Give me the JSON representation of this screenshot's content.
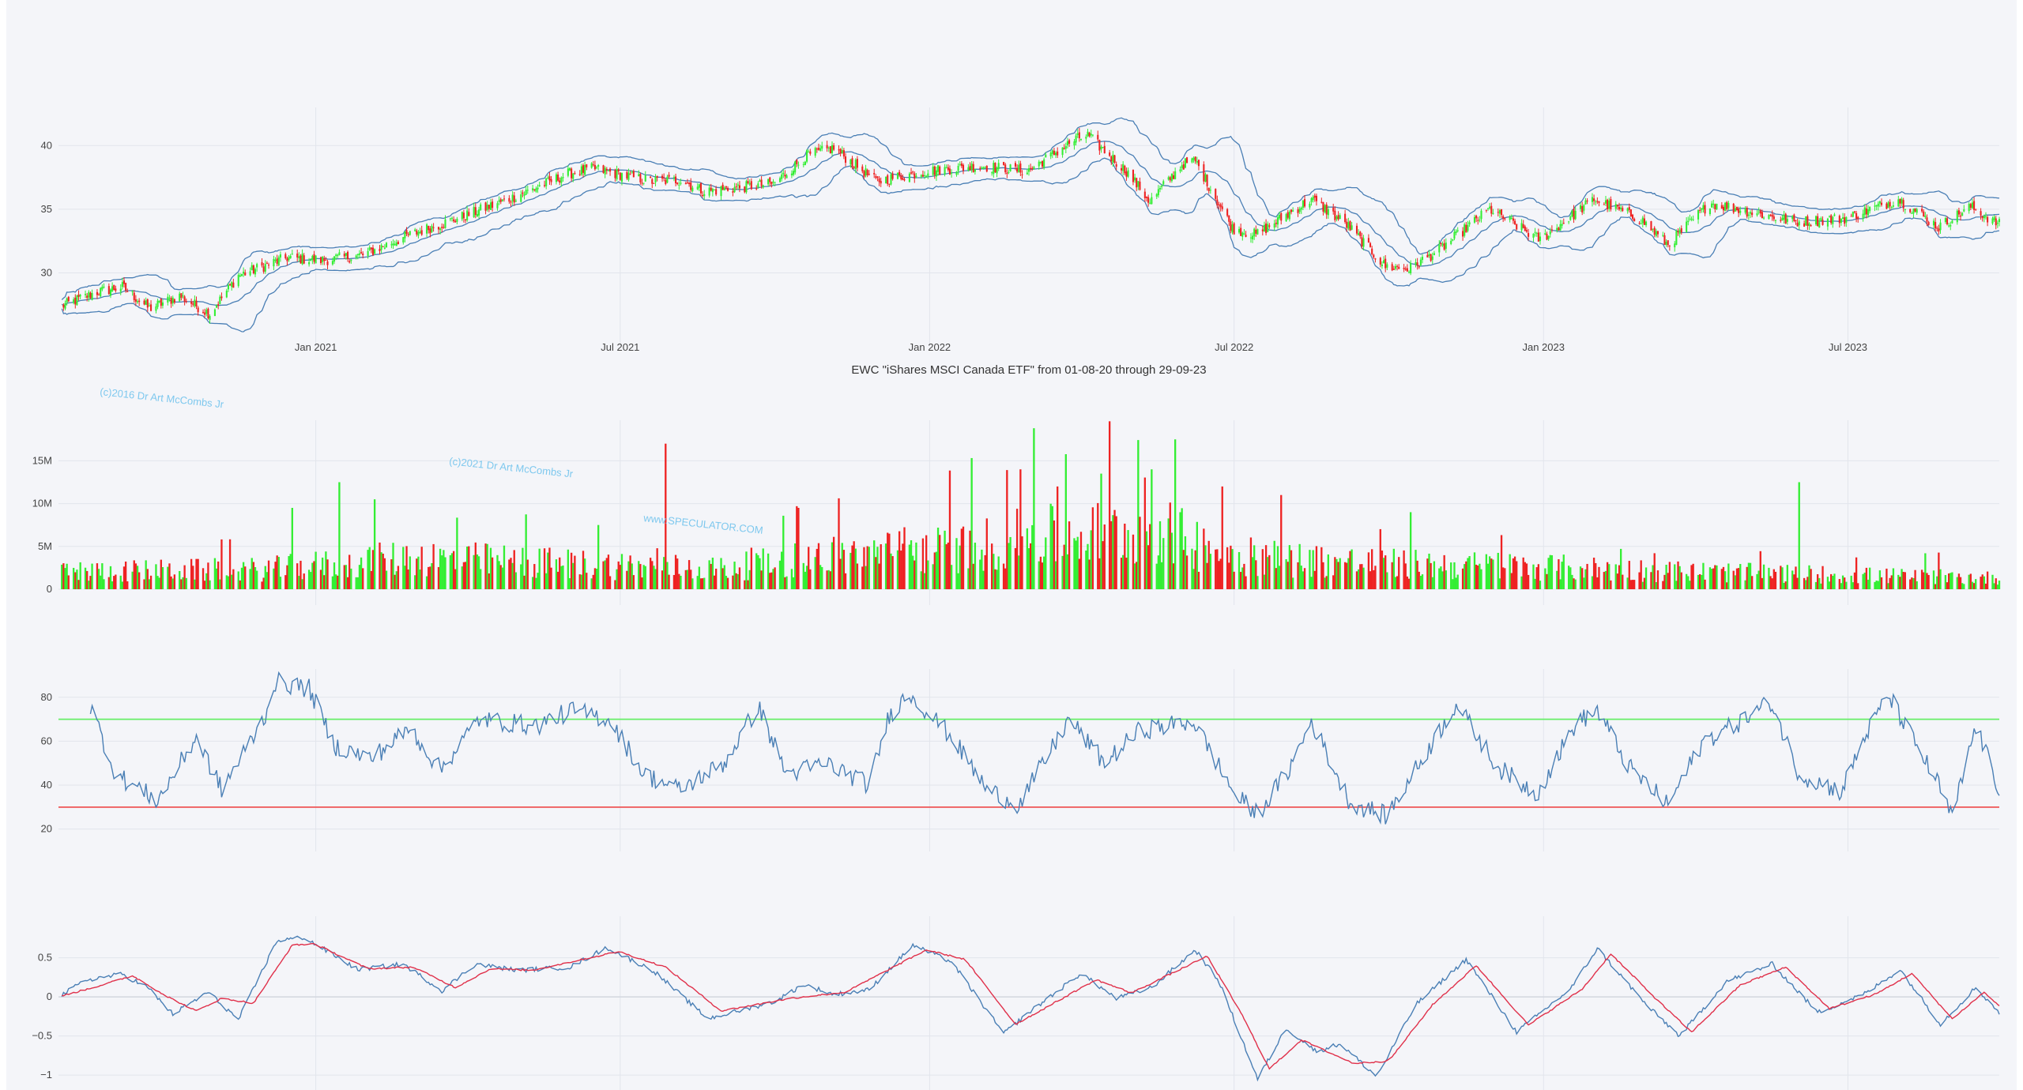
{
  "colors": {
    "background": "#f4f5f9",
    "grid": "#e2e5ec",
    "up": "#33ee33",
    "down": "#ee2222",
    "band": "#4a7fb5",
    "line": "#4a7fb5",
    "signal": "#e0304a",
    "overbought": "#66ee66",
    "oversold": "#ee5555",
    "watermark": "#7ec8ee"
  },
  "chart_data": [
    {
      "id": "price",
      "type": "candlestick",
      "title": "EWC \"iShares MSCI Canada ETF\" from 01-08-20 through 29-09-23",
      "x_range": [
        "2020-08-01",
        "2023-09-29"
      ],
      "x_ticks": [
        "Jan 2021",
        "Jul 2021",
        "Jan 2022",
        "Jul 2022",
        "Jan 2023",
        "Jul 2023"
      ],
      "y_range": [
        25.5,
        42.5
      ],
      "y_ticks": [
        "30",
        "35",
        "40"
      ],
      "overlays": [
        "bollinger_upper",
        "bollinger_middle",
        "bollinger_lower"
      ],
      "close_anchors": [
        [
          "2020-08-03",
          27.4
        ],
        [
          "2020-08-24",
          28.5
        ],
        [
          "2020-09-08",
          28.9
        ],
        [
          "2020-09-24",
          27.2
        ],
        [
          "2020-10-12",
          28.2
        ],
        [
          "2020-10-30",
          26.8
        ],
        [
          "2020-11-16",
          29.8
        ],
        [
          "2020-12-15",
          31.2
        ],
        [
          "2021-01-05",
          31.0
        ],
        [
          "2021-01-29",
          31.4
        ],
        [
          "2021-02-26",
          33.0
        ],
        [
          "2021-03-31",
          34.5
        ],
        [
          "2021-04-30",
          36.0
        ],
        [
          "2021-05-31",
          37.8
        ],
        [
          "2021-06-15",
          38.2
        ],
        [
          "2021-07-19",
          37.2
        ],
        [
          "2021-08-06",
          37.3
        ],
        [
          "2021-08-20",
          36.4
        ],
        [
          "2021-09-30",
          37.0
        ],
        [
          "2021-10-20",
          39.2
        ],
        [
          "2021-11-05",
          39.8
        ],
        [
          "2021-11-30",
          37.2
        ],
        [
          "2021-12-31",
          38.0
        ],
        [
          "2022-01-31",
          38.4
        ],
        [
          "2022-02-28",
          38.0
        ],
        [
          "2022-03-29",
          40.5
        ],
        [
          "2022-04-05",
          40.8
        ],
        [
          "2022-04-28",
          38.0
        ],
        [
          "2022-05-12",
          35.6
        ],
        [
          "2022-05-31",
          38.5
        ],
        [
          "2022-06-08",
          38.8
        ],
        [
          "2022-06-30",
          33.5
        ],
        [
          "2022-07-14",
          33.0
        ],
        [
          "2022-08-16",
          35.8
        ],
        [
          "2022-09-06",
          33.8
        ],
        [
          "2022-09-29",
          30.5
        ],
        [
          "2022-10-13",
          30.3
        ],
        [
          "2022-10-31",
          31.8
        ],
        [
          "2022-11-30",
          35.0
        ],
        [
          "2022-12-30",
          32.6
        ],
        [
          "2023-01-31",
          35.8
        ],
        [
          "2023-02-28",
          34.2
        ],
        [
          "2023-03-16",
          32.2
        ],
        [
          "2023-04-10",
          35.5
        ],
        [
          "2023-05-31",
          34.0
        ],
        [
          "2023-06-30",
          34.3
        ],
        [
          "2023-07-31",
          35.8
        ],
        [
          "2023-08-24",
          33.6
        ],
        [
          "2023-09-12",
          35.2
        ],
        [
          "2023-09-29",
          33.8
        ]
      ]
    },
    {
      "id": "volume",
      "type": "bar",
      "x_range": [
        "2020-08-01",
        "2023-09-29"
      ],
      "y_range": [
        0,
        19000000
      ],
      "y_ticks": [
        "0",
        "5M",
        "10M",
        "15M"
      ],
      "level_anchors": [
        [
          "2020-08-01",
          2.2
        ],
        [
          "2020-12-01",
          2.5
        ],
        [
          "2021-03-01",
          4.0
        ],
        [
          "2021-06-01",
          3.2
        ],
        [
          "2021-09-01",
          2.6
        ],
        [
          "2021-11-01",
          4.2
        ],
        [
          "2022-01-15",
          5.0
        ],
        [
          "2022-03-01",
          6.5
        ],
        [
          "2022-05-15",
          7.5
        ],
        [
          "2022-07-01",
          4.2
        ],
        [
          "2022-10-01",
          3.2
        ],
        [
          "2023-01-01",
          2.8
        ],
        [
          "2023-04-01",
          2.2
        ],
        [
          "2023-09-29",
          1.4
        ]
      ],
      "spikes": [
        [
          "2021-07-28",
          17.0
        ],
        [
          "2021-06-18",
          7.5
        ],
        [
          "2021-01-15",
          12.5
        ],
        [
          "2021-02-05",
          10.5
        ],
        [
          "2020-12-18",
          9.5
        ],
        [
          "2022-03-04",
          18.8
        ],
        [
          "2022-02-24",
          14.0
        ],
        [
          "2022-03-18",
          12.0
        ],
        [
          "2022-05-27",
          17.5
        ],
        [
          "2022-05-13",
          14.0
        ],
        [
          "2022-06-24",
          12.0
        ],
        [
          "2022-07-29",
          11.0
        ],
        [
          "2022-10-14",
          9.0
        ],
        [
          "2023-06-02",
          12.5
        ],
        [
          "2022-04-13",
          13.5
        ],
        [
          "2021-10-15",
          9.5
        ]
      ]
    },
    {
      "id": "rsi",
      "type": "line",
      "x_range": [
        "2020-08-01",
        "2023-09-29"
      ],
      "y_range": [
        17,
        90
      ],
      "y_ticks": [
        "20",
        "40",
        "60",
        "80"
      ],
      "reference_lines": [
        70,
        30
      ],
      "value_anchors": [
        [
          "2020-08-20",
          76
        ],
        [
          "2020-09-04",
          45
        ],
        [
          "2020-09-29",
          33
        ],
        [
          "2020-10-22",
          62
        ],
        [
          "2020-11-06",
          38
        ],
        [
          "2020-12-01",
          70
        ],
        [
          "2020-12-08",
          87
        ],
        [
          "2020-12-28",
          84
        ],
        [
          "2021-01-12",
          58
        ],
        [
          "2021-02-03",
          52
        ],
        [
          "2021-02-26",
          66
        ],
        [
          "2021-03-16",
          47
        ],
        [
          "2021-04-08",
          70
        ],
        [
          "2021-05-12",
          67
        ],
        [
          "2021-06-02",
          74
        ],
        [
          "2021-06-25",
          70
        ],
        [
          "2021-07-15",
          45
        ],
        [
          "2021-08-05",
          38
        ],
        [
          "2021-09-01",
          50
        ],
        [
          "2021-09-21",
          76
        ],
        [
          "2021-10-08",
          45
        ],
        [
          "2021-11-01",
          50
        ],
        [
          "2021-11-26",
          40
        ],
        [
          "2021-12-08",
          72
        ],
        [
          "2021-12-20",
          82
        ],
        [
          "2022-01-14",
          62
        ],
        [
          "2022-02-04",
          38
        ],
        [
          "2022-02-23",
          31
        ],
        [
          "2022-03-25",
          70
        ],
        [
          "2022-04-15",
          50
        ],
        [
          "2022-05-06",
          65
        ],
        [
          "2022-06-07",
          69
        ],
        [
          "2022-07-02",
          35
        ],
        [
          "2022-07-15",
          27
        ],
        [
          "2022-08-02",
          46
        ],
        [
          "2022-08-16",
          69
        ],
        [
          "2022-09-08",
          32
        ],
        [
          "2022-09-30",
          26
        ],
        [
          "2022-10-21",
          52
        ],
        [
          "2022-11-10",
          77
        ],
        [
          "2022-12-05",
          48
        ],
        [
          "2022-12-28",
          36
        ],
        [
          "2023-01-20",
          68
        ],
        [
          "2023-02-02",
          74
        ],
        [
          "2023-02-21",
          48
        ],
        [
          "2023-03-16",
          31
        ],
        [
          "2023-04-06",
          60
        ],
        [
          "2023-05-01",
          70
        ],
        [
          "2023-05-16",
          78
        ],
        [
          "2023-06-02",
          45
        ],
        [
          "2023-06-27",
          37
        ],
        [
          "2023-07-11",
          62
        ],
        [
          "2023-07-25",
          81
        ],
        [
          "2023-08-24",
          40
        ],
        [
          "2023-09-01",
          25
        ],
        [
          "2023-09-15",
          67
        ],
        [
          "2023-09-29",
          38
        ]
      ]
    },
    {
      "id": "macd",
      "type": "line",
      "x_range": [
        "2020-08-01",
        "2023-09-29"
      ],
      "y_range": [
        -1.15,
        0.95
      ],
      "y_ticks": [
        "−1",
        "−0.5",
        "0",
        "0.5"
      ],
      "series": [
        {
          "value_anchors": [
            [
              "2020-08-01",
              0.0
            ],
            [
              "2020-08-18",
              0.22
            ],
            [
              "2020-09-08",
              0.29
            ],
            [
              "2020-09-23",
              0.12
            ],
            [
              "2020-10-08",
              -0.22
            ],
            [
              "2020-10-29",
              0.06
            ],
            [
              "2020-11-16",
              -0.29
            ],
            [
              "2020-12-09",
              0.72
            ],
            [
              "2020-12-25",
              0.76
            ],
            [
              "2021-01-26",
              0.35
            ],
            [
              "2021-02-22",
              0.42
            ],
            [
              "2021-03-17",
              0.08
            ],
            [
              "2021-04-06",
              0.42
            ],
            [
              "2021-05-01",
              0.34
            ],
            [
              "2021-06-01",
              0.38
            ],
            [
              "2021-06-23",
              0.63
            ],
            [
              "2021-07-21",
              0.33
            ],
            [
              "2021-08-22",
              -0.28
            ],
            [
              "2021-10-01",
              -0.06
            ],
            [
              "2021-10-18",
              0.16
            ],
            [
              "2021-11-05",
              0.03
            ],
            [
              "2021-11-26",
              0.09
            ],
            [
              "2021-12-22",
              0.66
            ],
            [
              "2022-01-14",
              0.45
            ],
            [
              "2022-02-14",
              -0.47
            ],
            [
              "2022-03-01",
              -0.2
            ],
            [
              "2022-04-01",
              0.3
            ],
            [
              "2022-04-22",
              -0.02
            ],
            [
              "2022-05-13",
              0.12
            ],
            [
              "2022-06-08",
              0.6
            ],
            [
              "2022-06-22",
              0.2
            ],
            [
              "2022-07-15",
              -1.05
            ],
            [
              "2022-08-01",
              -0.4
            ],
            [
              "2022-08-19",
              -0.7
            ],
            [
              "2022-09-02",
              -0.6
            ],
            [
              "2022-09-24",
              -1.02
            ],
            [
              "2022-10-17",
              -0.1
            ],
            [
              "2022-11-16",
              0.48
            ],
            [
              "2022-12-16",
              -0.45
            ],
            [
              "2023-01-17",
              0.1
            ],
            [
              "2023-02-02",
              0.62
            ],
            [
              "2023-03-03",
              -0.1
            ],
            [
              "2023-03-23",
              -0.5
            ],
            [
              "2023-04-20",
              0.2
            ],
            [
              "2023-05-17",
              0.42
            ],
            [
              "2023-06-13",
              -0.2
            ],
            [
              "2023-07-12",
              0.05
            ],
            [
              "2023-08-01",
              0.35
            ],
            [
              "2023-08-25",
              -0.35
            ],
            [
              "2023-09-15",
              0.12
            ],
            [
              "2023-09-29",
              -0.2
            ]
          ]
        },
        {
          "value_anchors": [
            [
              "2020-08-01",
              0.0
            ],
            [
              "2020-08-25",
              0.14
            ],
            [
              "2020-09-14",
              0.27
            ],
            [
              "2020-10-05",
              0.0
            ],
            [
              "2020-10-22",
              -0.18
            ],
            [
              "2020-11-06",
              -0.02
            ],
            [
              "2020-11-25",
              -0.08
            ],
            [
              "2020-12-18",
              0.66
            ],
            [
              "2020-12-31",
              0.68
            ],
            [
              "2021-02-01",
              0.36
            ],
            [
              "2021-02-28",
              0.38
            ],
            [
              "2021-03-25",
              0.12
            ],
            [
              "2021-04-15",
              0.36
            ],
            [
              "2021-05-10",
              0.34
            ],
            [
              "2021-06-30",
              0.58
            ],
            [
              "2021-07-28",
              0.38
            ],
            [
              "2021-08-30",
              -0.18
            ],
            [
              "2021-10-10",
              -0.02
            ],
            [
              "2021-11-12",
              0.06
            ],
            [
              "2021-12-30",
              0.6
            ],
            [
              "2022-01-22",
              0.48
            ],
            [
              "2022-02-21",
              -0.35
            ],
            [
              "2022-03-10",
              -0.15
            ],
            [
              "2022-04-10",
              0.22
            ],
            [
              "2022-05-01",
              0.05
            ],
            [
              "2022-06-15",
              0.52
            ],
            [
              "2022-07-05",
              -0.2
            ],
            [
              "2022-07-22",
              -0.92
            ],
            [
              "2022-08-10",
              -0.55
            ],
            [
              "2022-09-10",
              -0.85
            ],
            [
              "2022-10-01",
              -0.82
            ],
            [
              "2022-10-27",
              -0.1
            ],
            [
              "2022-11-22",
              0.4
            ],
            [
              "2022-12-23",
              -0.36
            ],
            [
              "2023-01-24",
              0.1
            ],
            [
              "2023-02-10",
              0.55
            ],
            [
              "2023-03-10",
              -0.05
            ],
            [
              "2023-03-30",
              -0.45
            ],
            [
              "2023-04-28",
              0.15
            ],
            [
              "2023-05-25",
              0.38
            ],
            [
              "2023-06-20",
              -0.15
            ],
            [
              "2023-07-18",
              0.04
            ],
            [
              "2023-08-08",
              0.3
            ],
            [
              "2023-09-01",
              -0.28
            ],
            [
              "2023-09-20",
              0.06
            ],
            [
              "2023-09-29",
              -0.12
            ]
          ]
        }
      ]
    }
  ],
  "watermarks": [
    "(c)2016 Dr Art McCombs Jr",
    "(c)2021 Dr Art McCombs Jr",
    "www.SPECULATOR.COM"
  ]
}
